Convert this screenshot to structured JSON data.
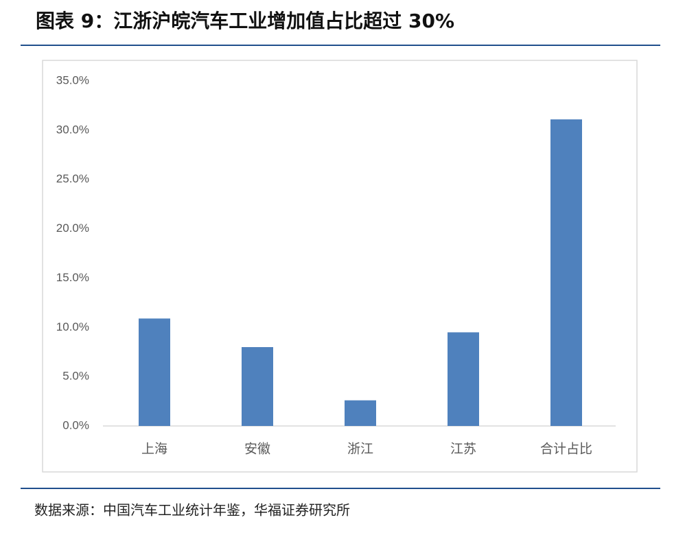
{
  "chart_data": {
    "type": "bar",
    "title": "图表 9：江浙沪皖汽车工业增加值占比超过 30%",
    "source": "数据来源：中国汽车工业统计年鉴，华福证券研究所",
    "categories": [
      "上海",
      "安徽",
      "浙江",
      "江苏",
      "合计占比"
    ],
    "values": [
      10.9,
      8.0,
      2.6,
      9.5,
      31.1
    ],
    "color": "#4f81bd",
    "ylim": [
      0,
      35
    ],
    "yticks": [
      {
        "value": 0,
        "label": "0.0%"
      },
      {
        "value": 5,
        "label": "5.0%"
      },
      {
        "value": 10,
        "label": "10.0%"
      },
      {
        "value": 15,
        "label": "15.0%"
      },
      {
        "value": 20,
        "label": "20.0%"
      },
      {
        "value": 25,
        "label": "25.0%"
      },
      {
        "value": 30,
        "label": "30.0%"
      },
      {
        "value": 35,
        "label": "35.0%"
      }
    ],
    "grid": false
  }
}
